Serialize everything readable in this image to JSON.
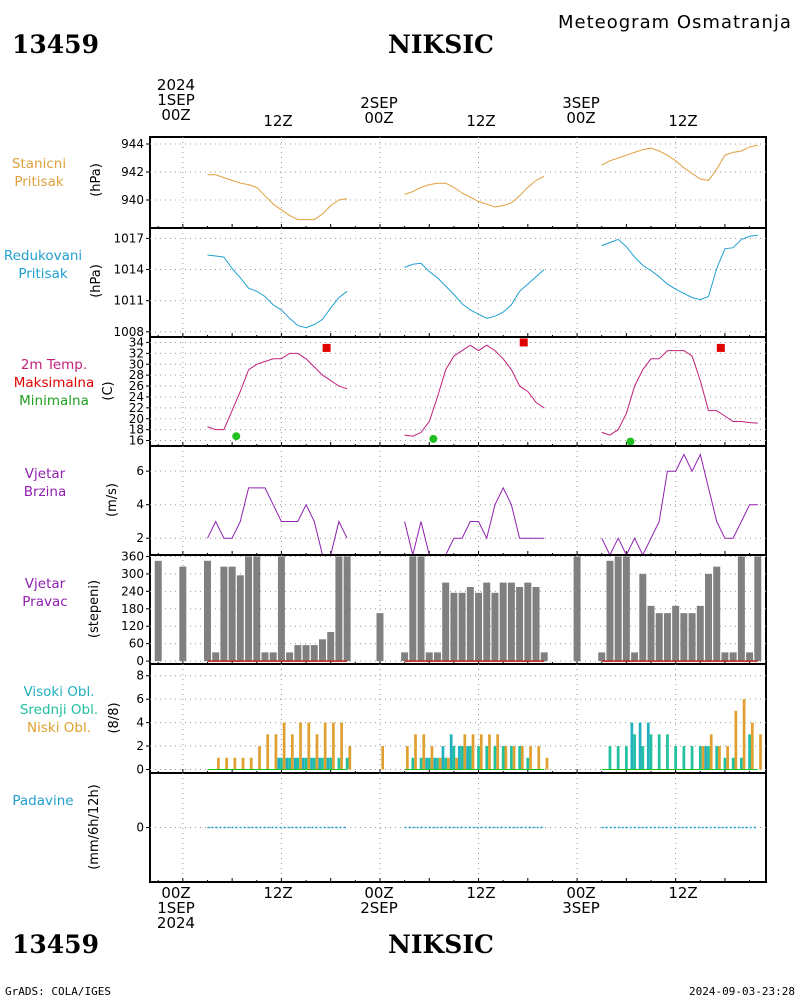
{
  "header": {
    "station_id": "13459",
    "station_name": "NIKSIC",
    "title": "Meteogram Osmatranja"
  },
  "footer": {
    "station_id": "13459",
    "station_name": "NIKSIC",
    "credit": "GrADS: COLA/IGES",
    "timestamp": "2024-09-03-23:28"
  },
  "time_axis": {
    "top_labels": [
      {
        "hour": 0,
        "lines": [
          "2024",
          "1SEP",
          "00Z"
        ]
      },
      {
        "hour": 12,
        "lines": [
          "12Z"
        ]
      },
      {
        "hour": 24,
        "lines": [
          "2SEP",
          "00Z"
        ]
      },
      {
        "hour": 36,
        "lines": [
          "12Z"
        ]
      },
      {
        "hour": 48,
        "lines": [
          "3SEP",
          "00Z"
        ]
      },
      {
        "hour": 60,
        "lines": [
          "12Z"
        ]
      }
    ],
    "bottom_labels": [
      {
        "hour": 0,
        "lines": [
          "00Z",
          "1SEP",
          "2024"
        ]
      },
      {
        "hour": 12,
        "lines": [
          "12Z"
        ]
      },
      {
        "hour": 24,
        "lines": [
          "00Z",
          "2SEP"
        ]
      },
      {
        "hour": 36,
        "lines": [
          "12Z"
        ]
      },
      {
        "hour": 48,
        "lines": [
          "00Z",
          "3SEP"
        ]
      },
      {
        "hour": 60,
        "lines": [
          "12Z"
        ]
      }
    ]
  },
  "panels": {
    "station_pressure": {
      "label": [
        "Stanicni",
        "Pritisak"
      ],
      "unit": "(hPa)",
      "color": "#e0a040"
    },
    "reduced_pressure": {
      "label": [
        "Redukovani",
        "Pritisak"
      ],
      "unit": "(hPa)",
      "color": "#20a0d0"
    },
    "temperature": {
      "label": [
        "2m Temp.",
        "Maksimalna",
        "Minimalna"
      ],
      "unit": "(C)",
      "colors": [
        "#c0207a",
        "#e00000",
        "#20c020"
      ]
    },
    "wind_speed": {
      "label": [
        "Vjetar",
        "Brzina"
      ],
      "unit": "(m/s)",
      "color": "#9020b0"
    },
    "wind_direction": {
      "label": [
        "Vjetar",
        "Pravac"
      ],
      "unit": "(stepeni)",
      "color": "#9020b0"
    },
    "clouds": {
      "label": [
        "Visoki Obl.",
        "Srednji Obl.",
        "Niski Obl."
      ],
      "unit": "(8/8)",
      "colors": [
        "#20b0c0",
        "#20c0a0",
        "#e0a030"
      ]
    },
    "precipitation": {
      "label": [
        "Padavine"
      ],
      "unit": "(mm/6h/12h)",
      "color": "#20a0d0"
    }
  },
  "chart_data": [
    {
      "type": "line",
      "name": "station_pressure",
      "color": "#e0a040",
      "ylim": [
        938,
        944.5
      ],
      "yticks": [
        940,
        942,
        944
      ],
      "ytick_labels": [
        "940",
        "942",
        "944"
      ],
      "segments": [
        {
          "x": [
            3,
            4,
            5,
            6,
            7,
            8,
            9,
            10,
            11,
            12,
            13,
            14,
            15,
            16,
            17,
            18,
            19,
            20
          ],
          "y": [
            941.8,
            941.8,
            941.6,
            941.4,
            941.2,
            941.1,
            940.9,
            940.3,
            939.7,
            939.3,
            938.9,
            938.6,
            938.6,
            938.6,
            939.0,
            939.6,
            940.0,
            940.1
          ]
        },
        {
          "x": [
            27,
            28,
            29,
            30,
            31,
            32,
            33,
            34,
            35,
            36,
            37,
            38,
            39,
            40,
            41,
            42,
            43,
            44
          ],
          "y": [
            940.4,
            940.6,
            940.9,
            941.1,
            941.2,
            941.2,
            940.9,
            940.5,
            940.2,
            939.9,
            939.7,
            939.5,
            939.6,
            939.8,
            940.3,
            940.9,
            941.4,
            941.7
          ]
        },
        {
          "x": [
            51,
            52,
            53,
            54,
            55,
            56,
            57,
            58,
            59,
            60,
            61,
            62,
            63,
            64,
            65,
            66,
            67,
            68,
            69,
            70
          ],
          "y": [
            942.5,
            942.8,
            943.0,
            943.2,
            943.4,
            943.6,
            943.7,
            943.5,
            943.2,
            942.8,
            942.3,
            941.9,
            941.5,
            941.4,
            942.2,
            943.2,
            943.4,
            943.5,
            943.8,
            943.9
          ]
        }
      ]
    },
    {
      "type": "line",
      "name": "reduced_pressure",
      "color": "#20a0d0",
      "ylim": [
        1007.5,
        1018
      ],
      "yticks": [
        1008,
        1011,
        1014,
        1017
      ],
      "ytick_labels": [
        "1008",
        "1011",
        "1014",
        "1017"
      ],
      "segments": [
        {
          "x": [
            3,
            4,
            5,
            6,
            7,
            8,
            9,
            10,
            11,
            12,
            13,
            14,
            15,
            16,
            17,
            18,
            19,
            20
          ],
          "y": [
            1015.4,
            1015.3,
            1015.2,
            1014.1,
            1013.2,
            1012.2,
            1011.9,
            1011.4,
            1010.6,
            1010.1,
            1009.3,
            1008.6,
            1008.4,
            1008.7,
            1009.2,
            1010.3,
            1011.3,
            1011.9
          ]
        },
        {
          "x": [
            27,
            28,
            29,
            30,
            31,
            32,
            33,
            34,
            35,
            36,
            37,
            38,
            39,
            40,
            41,
            42,
            43,
            44
          ],
          "y": [
            1014.2,
            1014.5,
            1014.6,
            1013.8,
            1013.2,
            1012.4,
            1011.6,
            1010.7,
            1010.1,
            1009.7,
            1009.3,
            1009.5,
            1009.9,
            1010.6,
            1011.9,
            1012.6,
            1013.3,
            1014.0
          ]
        },
        {
          "x": [
            51,
            52,
            53,
            54,
            55,
            56,
            57,
            58,
            59,
            60,
            61,
            62,
            63,
            64,
            65,
            66,
            67,
            68,
            69,
            70
          ],
          "y": [
            1016.3,
            1016.6,
            1016.9,
            1016.2,
            1015.2,
            1014.4,
            1013.9,
            1013.3,
            1012.6,
            1012.1,
            1011.7,
            1011.3,
            1011.1,
            1011.4,
            1014.1,
            1016.0,
            1016.1,
            1016.9,
            1017.2,
            1017.3
          ]
        }
      ]
    },
    {
      "type": "line",
      "name": "temperature_2m",
      "color": "#c0207a",
      "ylim": [
        15,
        35
      ],
      "yticks": [
        16,
        18,
        20,
        22,
        24,
        26,
        28,
        30,
        32,
        34
      ],
      "ytick_labels": [
        "16",
        "18",
        "20",
        "22",
        "24",
        "26",
        "28",
        "30",
        "32",
        "34"
      ],
      "segments": [
        {
          "x": [
            3,
            4,
            5,
            6,
            7,
            8,
            9,
            10,
            11,
            12,
            13,
            14,
            15,
            16,
            17,
            18,
            19,
            20
          ],
          "y": [
            18.5,
            18.0,
            18.0,
            21.5,
            25.0,
            29.0,
            30.0,
            30.5,
            31.0,
            31.0,
            32.0,
            32.0,
            31.0,
            29.5,
            28.0,
            27.0,
            26.0,
            25.5
          ]
        },
        {
          "x": [
            27,
            28,
            29,
            30,
            31,
            32,
            33,
            34,
            35,
            36,
            37,
            38,
            39,
            40,
            41,
            42,
            43,
            44
          ],
          "y": [
            17.0,
            16.8,
            17.5,
            19.5,
            24.0,
            29.0,
            31.5,
            32.5,
            33.5,
            32.5,
            33.5,
            32.5,
            31.0,
            29.0,
            26.0,
            25.0,
            23.0,
            22.0
          ]
        },
        {
          "x": [
            51,
            52,
            53,
            54,
            55,
            56,
            57,
            58,
            59,
            60,
            61,
            62,
            63,
            64,
            65,
            66,
            67,
            68,
            69,
            70
          ],
          "y": [
            17.5,
            17.0,
            18.0,
            21.0,
            26.0,
            29.0,
            31.0,
            31.0,
            32.5,
            32.5,
            32.5,
            31.5,
            27.0,
            21.5,
            21.5,
            20.5,
            19.5,
            19.5,
            19.3,
            19.2
          ]
        }
      ]
    },
    {
      "type": "scatter",
      "name": "temperature_max",
      "color": "#e00000",
      "x": [
        17.5,
        41.5,
        65.5
      ],
      "y": [
        33,
        34,
        33
      ]
    },
    {
      "type": "scatter",
      "name": "temperature_min",
      "color": "#20c020",
      "x": [
        6.5,
        30.5,
        54.5
      ],
      "y": [
        16.8,
        16.3,
        15.8
      ]
    },
    {
      "type": "line",
      "name": "wind_speed",
      "color": "#9020b0",
      "ylim": [
        1,
        7.5
      ],
      "yticks": [
        2,
        4,
        6
      ],
      "ytick_labels": [
        "2",
        "4",
        "6"
      ],
      "segments": [
        {
          "x": [
            3,
            4,
            5,
            6,
            7,
            8,
            9,
            10,
            11,
            12,
            13,
            14,
            15,
            16,
            17,
            18,
            19,
            20
          ],
          "y": [
            2,
            3,
            2,
            2,
            3,
            5,
            5,
            5,
            4,
            3,
            3,
            3,
            4,
            3,
            1,
            1,
            3,
            2
          ]
        },
        {
          "x": [
            27,
            28,
            29,
            30,
            31,
            32,
            33,
            34,
            35,
            36,
            37,
            38,
            39,
            40,
            41,
            42,
            43,
            44
          ],
          "y": [
            3,
            1,
            3,
            1,
            1,
            1,
            2,
            2,
            3,
            3,
            2,
            4,
            5,
            4,
            2,
            2,
            2,
            2
          ]
        },
        {
          "x": [
            51,
            52,
            53,
            54,
            55,
            56,
            57,
            58,
            59,
            60,
            61,
            62,
            63,
            64,
            65,
            66,
            67,
            68,
            69,
            70
          ],
          "y": [
            2,
            1,
            2,
            1,
            2,
            1,
            2,
            3,
            6,
            6,
            7,
            6,
            7,
            5,
            3,
            2,
            2,
            3,
            4,
            4
          ]
        }
      ]
    },
    {
      "type": "bar",
      "name": "wind_direction",
      "color": "#808080",
      "ylim": [
        -10,
        365
      ],
      "yticks": [
        0,
        60,
        120,
        180,
        240,
        300,
        360
      ],
      "ytick_labels": [
        "0",
        "60",
        "120",
        "180",
        "240",
        "300",
        "360"
      ],
      "x": [
        -3,
        0,
        3,
        4,
        5,
        6,
        7,
        8,
        9,
        10,
        11,
        12,
        13,
        14,
        15,
        16,
        17,
        18,
        19,
        20,
        24,
        27,
        28,
        29,
        30,
        31,
        32,
        33,
        34,
        35,
        36,
        37,
        38,
        39,
        40,
        41,
        42,
        43,
        44,
        48,
        51,
        52,
        53,
        54,
        55,
        56,
        57,
        58,
        59,
        60,
        61,
        62,
        63,
        64,
        65,
        66,
        67,
        68,
        69,
        70
      ],
      "values": [
        345,
        325,
        345,
        30,
        325,
        325,
        295,
        360,
        360,
        30,
        30,
        360,
        30,
        55,
        55,
        55,
        75,
        100,
        360,
        360,
        165,
        30,
        360,
        360,
        30,
        30,
        270,
        235,
        235,
        255,
        235,
        270,
        235,
        270,
        270,
        255,
        270,
        255,
        30,
        360,
        30,
        345,
        360,
        360,
        30,
        300,
        190,
        165,
        165,
        190,
        165,
        165,
        190,
        300,
        325,
        30,
        30,
        360,
        30,
        360
      ]
    },
    {
      "type": "bar",
      "name": "clouds",
      "colors": {
        "high": "#20b0c0",
        "mid": "#20c0a0",
        "low": "#e0a030"
      },
      "ylim": [
        -0.3,
        9
      ],
      "yticks": [
        0,
        2,
        4,
        6,
        8
      ],
      "ytick_labels": [
        "0",
        "2",
        "4",
        "6",
        "8"
      ],
      "x": [
        -3,
        0,
        3,
        4,
        5,
        6,
        7,
        8,
        9,
        10,
        11,
        12,
        13,
        14,
        15,
        16,
        17,
        18,
        19,
        20,
        24,
        27,
        28,
        29,
        30,
        31,
        32,
        33,
        34,
        35,
        36,
        37,
        38,
        39,
        40,
        41,
        42,
        43,
        44,
        48,
        51,
        52,
        53,
        54,
        55,
        56,
        57,
        58,
        59,
        60,
        61,
        62,
        63,
        64,
        65,
        66,
        67,
        68,
        69,
        70
      ],
      "series": [
        {
          "name": "high",
          "values": [
            0,
            0,
            0,
            0,
            0,
            0,
            0,
            0,
            0,
            0,
            0,
            1,
            1,
            1,
            1,
            1,
            1,
            1,
            0,
            0,
            0,
            0,
            0,
            0,
            1,
            1,
            2,
            3,
            2,
            2,
            0,
            0,
            0,
            0,
            0,
            0,
            0,
            0,
            0,
            0,
            0,
            0,
            0,
            0,
            4,
            4,
            4,
            0,
            0,
            0,
            0,
            0,
            0,
            2,
            0,
            0,
            0,
            0,
            0,
            0
          ]
        },
        {
          "name": "mid",
          "values": [
            0,
            0,
            0,
            0,
            0,
            0,
            0,
            0,
            0,
            0,
            0,
            1,
            1,
            1,
            1,
            1,
            1,
            1,
            1,
            1,
            0,
            0,
            1,
            1,
            1,
            1,
            1,
            2,
            2,
            2,
            2,
            2,
            2,
            2,
            2,
            2,
            1,
            0,
            0,
            0,
            0,
            2,
            2,
            2,
            3,
            2,
            3,
            3,
            3,
            2,
            2,
            2,
            2,
            2,
            2,
            1,
            1,
            1,
            3,
            0
          ]
        },
        {
          "name": "low",
          "values": [
            0,
            0,
            0,
            1,
            1,
            1,
            1,
            1,
            2,
            3,
            3,
            4,
            3,
            4,
            4,
            3,
            4,
            4,
            4,
            2,
            2,
            2,
            3,
            3,
            2,
            1,
            1,
            1,
            3,
            3,
            3,
            3,
            3,
            2,
            2,
            2,
            2,
            2,
            1,
            0,
            0,
            0,
            0,
            0,
            0,
            0,
            0,
            0,
            0,
            0,
            0,
            0,
            2,
            3,
            2,
            2,
            5,
            6,
            4,
            3
          ]
        }
      ]
    },
    {
      "type": "line",
      "name": "precipitation",
      "color": "#20a0d0",
      "ylim": [
        -1,
        1
      ],
      "yticks": [
        0
      ],
      "ytick_labels": [
        "0"
      ],
      "segments": [
        {
          "x": [
            3,
            20
          ],
          "y": [
            0,
            0
          ]
        },
        {
          "x": [
            27,
            44
          ],
          "y": [
            0,
            0
          ]
        },
        {
          "x": [
            51,
            70
          ],
          "y": [
            0,
            0
          ]
        }
      ]
    }
  ]
}
